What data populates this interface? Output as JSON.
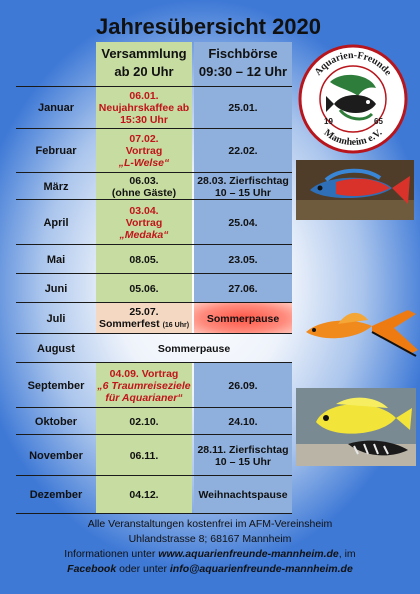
{
  "title": "Jahresübersicht 2020",
  "headers": {
    "col_a": [
      "Versammlung",
      "ab 20 Uhr"
    ],
    "col_b": [
      "Fischbörse",
      "09:30 – 12 Uhr"
    ]
  },
  "logo": {
    "text_top": "Aquarien-Freunde",
    "text_bottom": "Mannheim e.V.",
    "year_left": "19",
    "year_right": "65"
  },
  "rows": [
    {
      "month": "Januar",
      "a": [
        {
          "t": "06.01.",
          "s": "red"
        },
        {
          "t": "Neujahrskaffee ab",
          "s": "red"
        },
        {
          "t": "15:30 Uhr",
          "s": "red"
        }
      ],
      "b": [
        {
          "t": "25.01.",
          "s": "b"
        }
      ]
    },
    {
      "month": "Februar",
      "a": [
        {
          "t": "07.02.",
          "s": "red"
        },
        {
          "t": "Vortrag",
          "s": "red"
        },
        {
          "t": "„L-Welse“",
          "s": "redi"
        }
      ],
      "b": [
        {
          "t": "22.02.",
          "s": "b"
        }
      ]
    },
    {
      "month": "März",
      "a": [
        {
          "t": "06.03.",
          "s": "b"
        },
        {
          "t": "(ohne Gäste)",
          "s": "b"
        }
      ],
      "b": [
        {
          "t": "28.03.  Zierfischtag",
          "s": "b"
        },
        {
          "t": "10 – 15 Uhr",
          "s": "b"
        }
      ]
    },
    {
      "month": "April",
      "a": [
        {
          "t": "03.04.",
          "s": "red"
        },
        {
          "t": "Vortrag",
          "s": "red"
        },
        {
          "t": "„Medaka“",
          "s": "redi"
        }
      ],
      "b": [
        {
          "t": "25.04.",
          "s": "b"
        }
      ]
    },
    {
      "month": "Mai",
      "a": [
        {
          "t": "08.05.",
          "s": "b"
        }
      ],
      "b": [
        {
          "t": "23.05.",
          "s": "b"
        }
      ]
    },
    {
      "month": "Juni",
      "a": [
        {
          "t": "05.06.",
          "s": "b"
        }
      ],
      "b": [
        {
          "t": "27.06.",
          "s": "b"
        }
      ]
    },
    {
      "month": "Juli",
      "a": [
        {
          "t": "25.07.",
          "s": "b"
        },
        {
          "t": "Sommerfest",
          "s": "b",
          "small": "(16 Uhr)"
        }
      ],
      "b": [
        {
          "t": "Sommerpause",
          "s": "b"
        }
      ],
      "variant": "juli"
    },
    {
      "month": "August",
      "full": "Sommerpause"
    },
    {
      "month": "September",
      "a": [
        {
          "t": "04.09.  Vortrag",
          "s": "red"
        },
        {
          "t": "„6 Traumreiseziele",
          "s": "redi"
        },
        {
          "t": "für Aquarianer“",
          "s": "redi"
        }
      ],
      "b": [
        {
          "t": "26.09.",
          "s": "b"
        }
      ]
    },
    {
      "month": "Oktober",
      "a": [
        {
          "t": "02.10.",
          "s": "b"
        }
      ],
      "b": [
        {
          "t": "24.10.",
          "s": "b"
        }
      ]
    },
    {
      "month": "November",
      "a": [
        {
          "t": "06.11.",
          "s": "b"
        }
      ],
      "b": [
        {
          "t": "28.11.  Zierfischtag",
          "s": "b"
        },
        {
          "t": "10 – 15 Uhr",
          "s": "b"
        }
      ]
    },
    {
      "month": "Dezember",
      "a": [
        {
          "t": "04.12.",
          "s": "b"
        }
      ],
      "b": [
        {
          "t": "Weihnachtspause",
          "s": "b"
        }
      ]
    }
  ],
  "footer": {
    "line1": "Alle Veranstaltungen kostenfrei im AFM-Vereinsheim",
    "line2": "Uhlandstrasse 8; 68167 Mannheim",
    "line3_pre": "Informationen unter ",
    "line3_link": "www.aquarienfreunde-mannheim.de",
    "line3_post": ", im",
    "line4_link1": "Facebook",
    "line4_mid": " oder unter ",
    "line4_link2": "info@aquarienfreunde-mannheim.de"
  },
  "colors": {
    "versammlung_bg": "#c6dca0",
    "boerse_bg": "#8fb0dc",
    "accent_red": "#c0151a"
  }
}
